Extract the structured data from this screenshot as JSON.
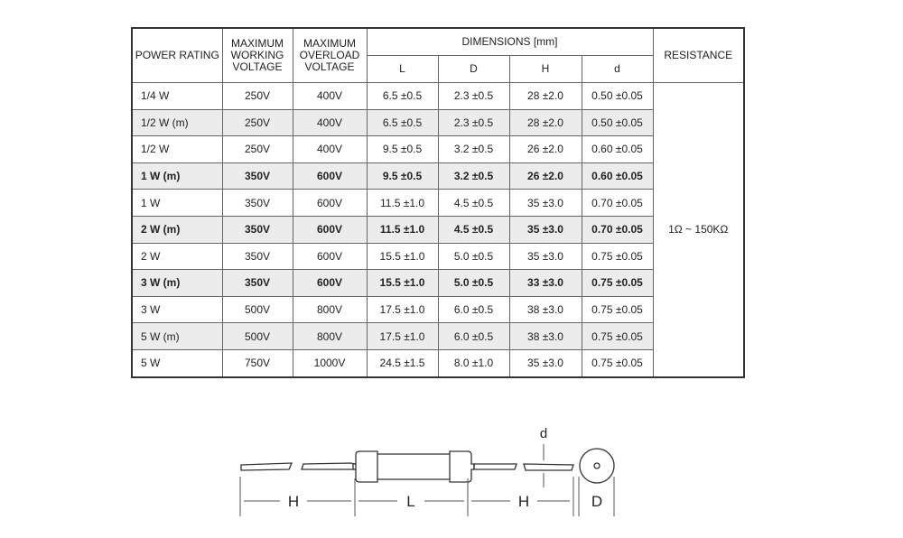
{
  "table": {
    "headers": {
      "power_rating": "POWER RATING",
      "max_working_voltage": "MAXIMUM WORKING VOLTAGE",
      "max_overload_voltage": "MAXIMUM OVERLOAD VOLTAGE",
      "dimensions": "DIMENSIONS [mm]",
      "resistance": "RESISTANCE",
      "dim_cols": [
        "L",
        "D",
        "H",
        "d"
      ]
    },
    "rows": [
      {
        "power": "1/4 W",
        "working": "250V",
        "overload": "400V",
        "L": "6.5 ±0.5",
        "D": "2.3 ±0.5",
        "H": "28 ±2.0",
        "d": "0.50 ±0.05",
        "shaded": false,
        "bold": false
      },
      {
        "power": "1/2 W (m)",
        "working": "250V",
        "overload": "400V",
        "L": "6.5 ±0.5",
        "D": "2.3 ±0.5",
        "H": "28 ±2.0",
        "d": "0.50 ±0.05",
        "shaded": true,
        "bold": false
      },
      {
        "power": "1/2 W",
        "working": "250V",
        "overload": "400V",
        "L": "9.5 ±0.5",
        "D": "3.2 ±0.5",
        "H": "26 ±2.0",
        "d": "0.60 ±0.05",
        "shaded": false,
        "bold": false
      },
      {
        "power": "1 W (m)",
        "working": "350V",
        "overload": "600V",
        "L": "9.5 ±0.5",
        "D": "3.2 ±0.5",
        "H": "26 ±2.0",
        "d": "0.60 ±0.05",
        "shaded": true,
        "bold": true
      },
      {
        "power": "1 W",
        "working": "350V",
        "overload": "600V",
        "L": "11.5 ±1.0",
        "D": "4.5 ±0.5",
        "H": "35 ±3.0",
        "d": "0.70 ±0.05",
        "shaded": false,
        "bold": false
      },
      {
        "power": "2 W (m)",
        "working": "350V",
        "overload": "600V",
        "L": "11.5 ±1.0",
        "D": "4.5 ±0.5",
        "H": "35 ±3.0",
        "d": "0.70 ±0.05",
        "shaded": true,
        "bold": true
      },
      {
        "power": "2 W",
        "working": "350V",
        "overload": "600V",
        "L": "15.5 ±1.0",
        "D": "5.0 ±0.5",
        "H": "35 ±3.0",
        "d": "0.75 ±0.05",
        "shaded": false,
        "bold": false
      },
      {
        "power": "3 W (m)",
        "working": "350V",
        "overload": "600V",
        "L": "15.5 ±1.0",
        "D": "5.0 ±0.5",
        "H": "33 ±3.0",
        "d": "0.75 ±0.05",
        "shaded": true,
        "bold": true
      },
      {
        "power": "3 W",
        "working": "500V",
        "overload": "800V",
        "L": "17.5 ±1.0",
        "D": "6.0 ±0.5",
        "H": "38 ±3.0",
        "d": "0.75 ±0.05",
        "shaded": false,
        "bold": false
      },
      {
        "power": "5 W (m)",
        "working": "500V",
        "overload": "800V",
        "L": "17.5 ±1.0",
        "D": "6.0 ±0.5",
        "H": "38 ±3.0",
        "d": "0.75 ±0.05",
        "shaded": true,
        "bold": false
      },
      {
        "power": "5 W",
        "working": "750V",
        "overload": "1000V",
        "L": "24.5 ±1.5",
        "D": "8.0 ±1.0",
        "H": "35 ±3.0",
        "d": "0.75 ±0.05",
        "shaded": false,
        "bold": false
      }
    ],
    "resistance_value": "1Ω ~ 150KΩ"
  },
  "diagram": {
    "labels": {
      "H_left": "H",
      "L": "L",
      "H_right": "H",
      "D": "D",
      "d": "d"
    }
  }
}
